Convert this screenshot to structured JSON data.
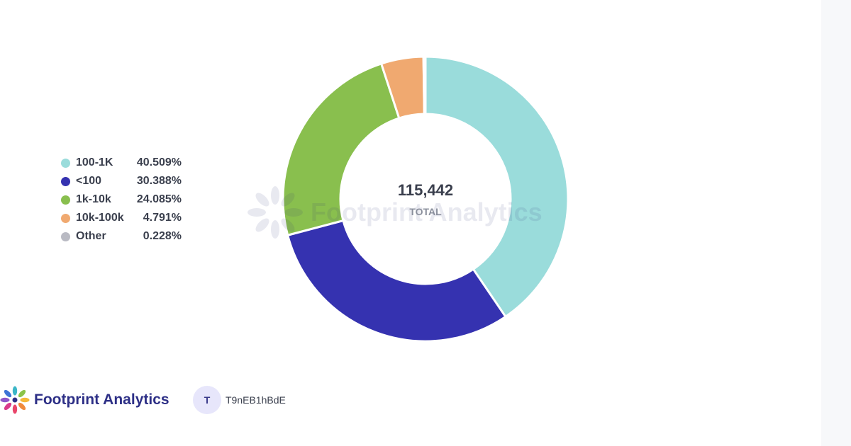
{
  "chart_data": {
    "type": "pie",
    "donut": true,
    "center_value": "115,442",
    "center_label": "TOTAL",
    "slices": [
      {
        "label": "100-1K",
        "value": 40.509,
        "value_text": "40.509%",
        "color": "#9adcdb"
      },
      {
        "label": "<100",
        "value": 30.388,
        "value_text": "30.388%",
        "color": "#3532b0"
      },
      {
        "label": "1k-10k",
        "value": 24.085,
        "value_text": "24.085%",
        "color": "#89bf4e"
      },
      {
        "label": "10k-100k",
        "value": 4.791,
        "value_text": "4.791%",
        "color": "#f0a970"
      },
      {
        "label": "Other",
        "value": 0.228,
        "value_text": "0.228%",
        "color": "#b9bac3"
      }
    ],
    "legend_position": "left"
  },
  "watermark": {
    "text": "Footprint Analytics"
  },
  "footer": {
    "brand": "Footprint Analytics",
    "avatar_initial": "T",
    "author": "T9nEB1hBdE"
  }
}
